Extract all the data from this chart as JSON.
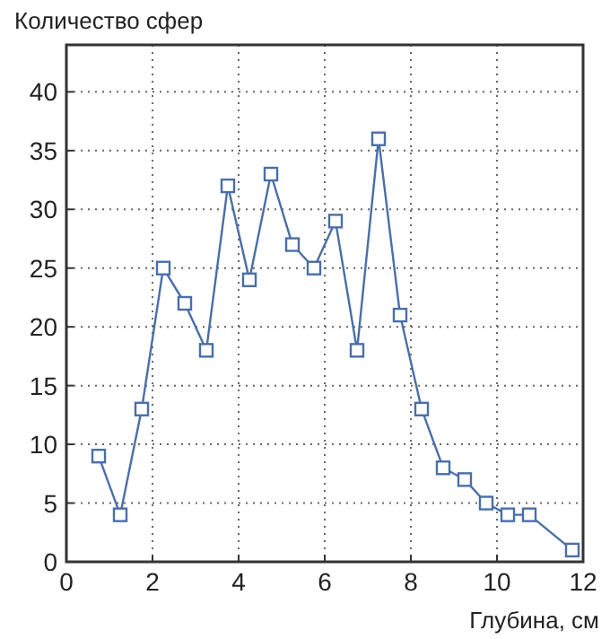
{
  "chart_data": {
    "type": "line",
    "ylabel": "Количество сфер",
    "xlabel": "Глубина, см",
    "x": [
      0.75,
      1.25,
      1.75,
      2.25,
      2.75,
      3.25,
      3.75,
      4.25,
      4.75,
      5.25,
      5.75,
      6.25,
      6.75,
      7.25,
      7.75,
      8.25,
      8.75,
      9.25,
      9.75,
      10.25,
      10.75,
      11.75
    ],
    "series": [
      {
        "color": "#4a6ea8",
        "values": [
          9,
          4,
          13,
          25,
          22,
          18,
          32,
          24,
          33,
          27,
          25,
          29,
          18,
          36,
          21,
          13,
          8,
          7,
          5,
          4,
          4,
          1
        ]
      }
    ],
    "xlim": [
      0,
      12
    ],
    "xticks": [
      0,
      2,
      4,
      6,
      8,
      10,
      12
    ],
    "ylim": [
      0,
      44
    ],
    "yticks": [
      0,
      5,
      10,
      15,
      20,
      25,
      30,
      35,
      40
    ],
    "grid": true,
    "marker": "square",
    "line_style": "solid"
  }
}
